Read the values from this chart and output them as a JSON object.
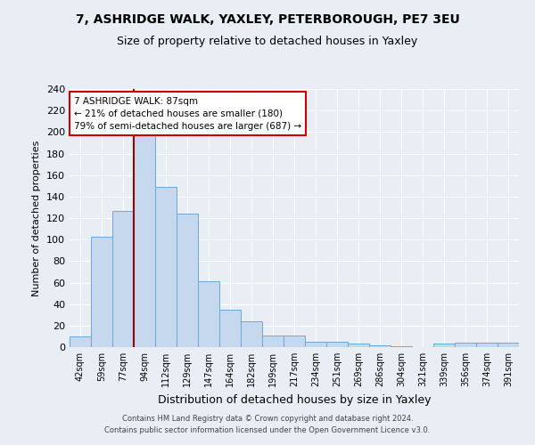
{
  "title": "7, ASHRIDGE WALK, YAXLEY, PETERBOROUGH, PE7 3EU",
  "subtitle": "Size of property relative to detached houses in Yaxley",
  "xlabel": "Distribution of detached houses by size in Yaxley",
  "ylabel": "Number of detached properties",
  "categories": [
    "42sqm",
    "59sqm",
    "77sqm",
    "94sqm",
    "112sqm",
    "129sqm",
    "147sqm",
    "164sqm",
    "182sqm",
    "199sqm",
    "217sqm",
    "234sqm",
    "251sqm",
    "269sqm",
    "286sqm",
    "304sqm",
    "321sqm",
    "339sqm",
    "356sqm",
    "374sqm",
    "391sqm"
  ],
  "values": [
    10,
    103,
    127,
    198,
    149,
    124,
    61,
    35,
    24,
    11,
    11,
    5,
    5,
    3,
    2,
    1,
    0,
    3,
    4,
    4,
    4
  ],
  "bar_color": "#c5d8ed",
  "bar_edge_color": "#6fa8d4",
  "vline_color": "#990000",
  "annotation_title": "7 ASHRIDGE WALK: 87sqm",
  "annotation_line1": "← 21% of detached houses are smaller (180)",
  "annotation_line2": "79% of semi-detached houses are larger (687) →",
  "annotation_box_color": "#ffffff",
  "annotation_box_edge": "#cc0000",
  "ylim": [
    0,
    240
  ],
  "yticks": [
    0,
    20,
    40,
    60,
    80,
    100,
    120,
    140,
    160,
    180,
    200,
    220,
    240
  ],
  "footer1": "Contains HM Land Registry data © Crown copyright and database right 2024.",
  "footer2": "Contains public sector information licensed under the Open Government Licence v3.0.",
  "background_color": "#e8eef4",
  "plot_bg_color": "#e8eef4"
}
